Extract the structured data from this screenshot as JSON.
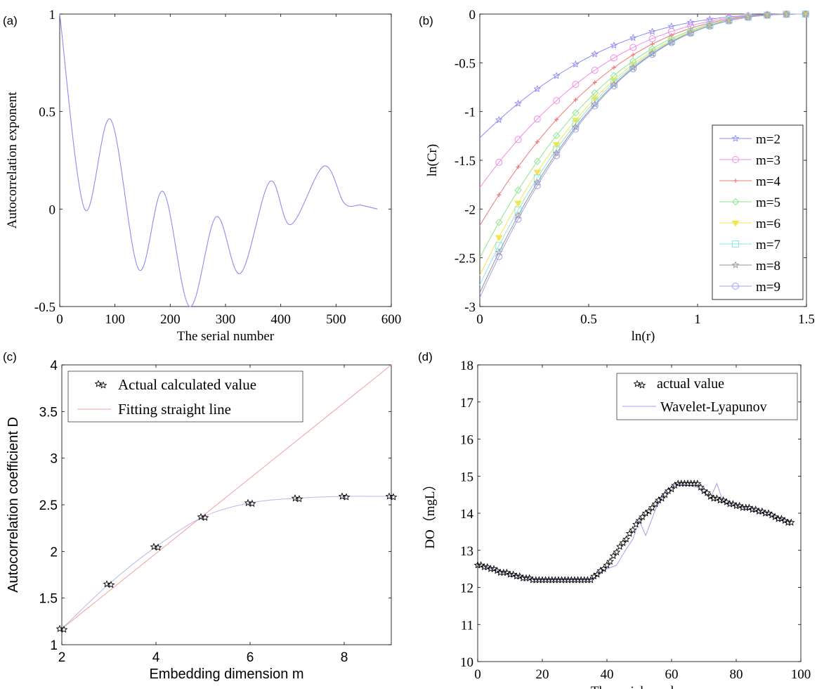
{
  "chart_data": [
    {
      "id": "a",
      "panel_label": "(a)",
      "type": "line",
      "xlabel": "The serial number",
      "ylabel": "Autocorrelation exponent",
      "xlim": [
        0,
        600
      ],
      "ylim": [
        -0.5,
        1
      ],
      "xticks": [
        0,
        100,
        200,
        300,
        400,
        500,
        600
      ],
      "xtick_labels": [
        "0",
        "100",
        "200",
        "300",
        "400",
        "500",
        "600"
      ],
      "yticks": [
        -0.5,
        0,
        0.5,
        1
      ],
      "ytick_labels": [
        "-0.5",
        "0",
        "0.5",
        "1"
      ],
      "grid": false,
      "series": [
        {
          "color": "#8c8cf0",
          "points": [
            [
              0,
              1.0
            ],
            [
              45,
              0.0
            ],
            [
              92,
              0.46
            ],
            [
              143,
              -0.31
            ],
            [
              187,
              0.09
            ],
            [
              235,
              -0.5
            ],
            [
              283,
              -0.04
            ],
            [
              327,
              -0.33
            ],
            [
              380,
              0.14
            ],
            [
              418,
              -0.08
            ],
            [
              478,
              0.22
            ],
            [
              515,
              0.03
            ],
            [
              545,
              0.02
            ],
            [
              575,
              0.0
            ]
          ]
        }
      ]
    },
    {
      "id": "b",
      "panel_label": "(b)",
      "type": "line",
      "xlabel": "ln(r)",
      "ylabel": "ln(Cr)",
      "xlim": [
        0,
        1.5
      ],
      "ylim": [
        -3,
        0
      ],
      "xticks": [
        0,
        0.5,
        1,
        1.5
      ],
      "xtick_labels": [
        "0",
        "0.5",
        "1",
        "1.5"
      ],
      "yticks": [
        -3,
        -2.5,
        -2,
        -1.5,
        -1,
        -0.5,
        0
      ],
      "ytick_labels": [
        "-3",
        "-2.5",
        "-2",
        "-1.5",
        "-1",
        "-0.5",
        "0"
      ],
      "grid": false,
      "legend_position": "right",
      "series": [
        {
          "name": "m=2",
          "color": "#8c8cf5",
          "marker": "star",
          "y0": -1.27
        },
        {
          "name": "m=3",
          "color": "#f08ce6",
          "marker": "circle",
          "y0": -1.78
        },
        {
          "name": "m=4",
          "color": "#f07878",
          "marker": "plus",
          "y0": -2.17
        },
        {
          "name": "m=5",
          "color": "#8ce68c",
          "marker": "diamond",
          "y0": -2.5
        },
        {
          "name": "m=6",
          "color": "#f0e650",
          "marker": "triangle",
          "y0": -2.68
        },
        {
          "name": "m=7",
          "color": "#8ce6e6",
          "marker": "square",
          "y0": -2.78
        },
        {
          "name": "m=8",
          "color": "#969696",
          "marker": "star",
          "y0": -2.86
        },
        {
          "name": "m=9",
          "color": "#a0a0f0",
          "marker": "circle",
          "y0": -2.91
        }
      ]
    },
    {
      "id": "c",
      "panel_label": "(c)",
      "type": "line",
      "xlabel": "Embedding dimension m",
      "ylabel": "Autocorrelation coefficient D",
      "xlim": [
        2,
        9
      ],
      "ylim": [
        1,
        4
      ],
      "xticks": [
        2,
        4,
        6,
        8
      ],
      "xtick_labels": [
        "2",
        "4",
        "6",
        "8"
      ],
      "yticks": [
        1,
        1.5,
        2,
        2.5,
        3,
        3.5,
        4
      ],
      "ytick_labels": [
        "1",
        "1.5",
        "2",
        "2.5",
        "3",
        "3.5",
        "4"
      ],
      "grid": false,
      "legend_position": "top-left",
      "series": [
        {
          "name": "Actual calculated value",
          "color": "#000000",
          "marker": "star",
          "x": [
            2,
            3,
            4,
            5,
            6,
            7,
            8,
            9
          ],
          "y": [
            1.17,
            1.65,
            2.05,
            2.37,
            2.52,
            2.57,
            2.59,
            2.59
          ]
        },
        {
          "name": "Fitting straight line",
          "color": "#f0a0a0",
          "x": [
            2,
            9
          ],
          "y": [
            1.17,
            4.0
          ]
        }
      ]
    },
    {
      "id": "d",
      "panel_label": "(d)",
      "type": "line",
      "xlabel": "The serial number",
      "ylabel": "DO（mgL）",
      "xlim": [
        0,
        100
      ],
      "ylim": [
        10,
        18
      ],
      "xticks": [
        0,
        20,
        40,
        60,
        80,
        100
      ],
      "xtick_labels": [
        "0",
        "20",
        "40",
        "60",
        "80",
        "100"
      ],
      "yticks": [
        10,
        11,
        12,
        13,
        14,
        15,
        16,
        17,
        18
      ],
      "ytick_labels": [
        "10",
        "11",
        "12",
        "13",
        "14",
        "15",
        "16",
        "17",
        "18"
      ],
      "grid": false,
      "legend_position": "top-right",
      "series": [
        {
          "name": "actual value",
          "color": "#000000",
          "marker": "star",
          "x": [
            0,
            10,
            18,
            35,
            40,
            50,
            58,
            62,
            68,
            72,
            80,
            88,
            96,
            97
          ],
          "y": [
            12.6,
            12.35,
            12.2,
            12.2,
            12.6,
            13.8,
            14.5,
            14.8,
            14.78,
            14.45,
            14.2,
            14.05,
            13.75,
            13.75
          ]
        },
        {
          "name": "Wavelet-Lyapunov",
          "color": "#a0a0f0",
          "x": [
            0,
            10,
            18,
            35,
            40,
            43,
            45,
            48,
            50,
            52,
            55,
            58,
            62,
            68,
            72,
            74,
            76,
            80,
            88,
            96,
            97
          ],
          "y": [
            12.6,
            12.35,
            12.2,
            12.2,
            12.5,
            12.6,
            12.9,
            13.3,
            13.8,
            13.4,
            14.1,
            14.6,
            14.8,
            14.7,
            14.4,
            14.8,
            14.3,
            14.2,
            14.0,
            13.8,
            13.8
          ]
        }
      ]
    }
  ]
}
